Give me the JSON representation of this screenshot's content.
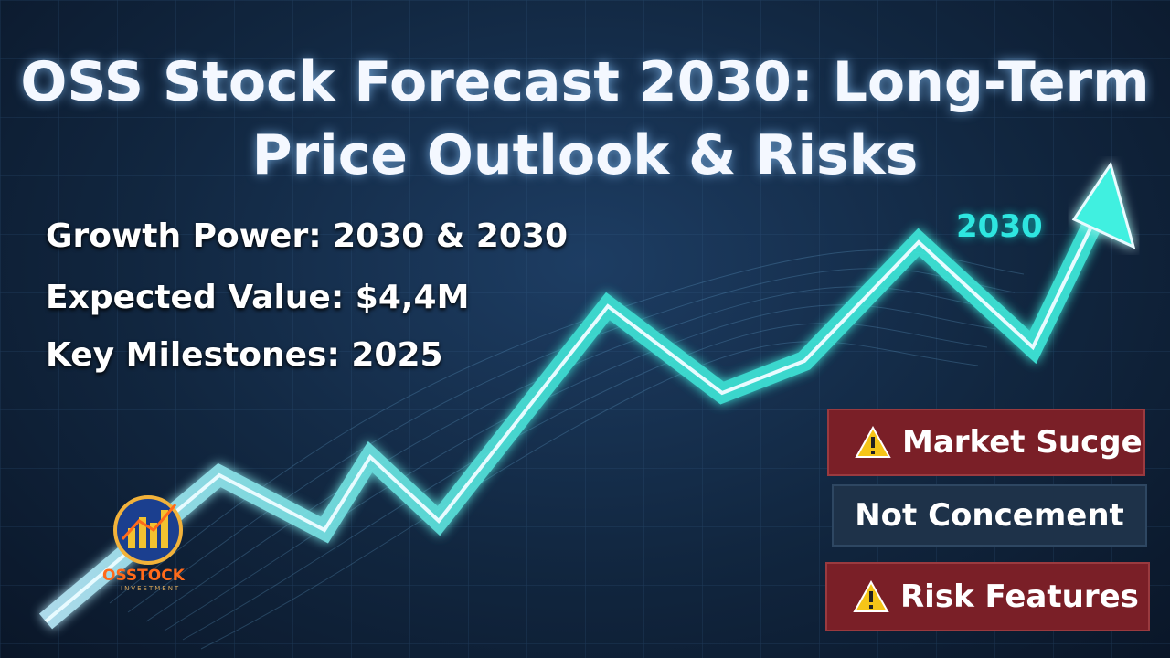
{
  "header": {
    "title_lines": [
      "OSS Stock Forecast 2030: Long-Term",
      "Price Outlook & Risks"
    ]
  },
  "highlights": [
    "Growth Power: 2030 & 2030",
    "Expected Value: $4,4M",
    "Key Milestones: 2025"
  ],
  "arrow_label": "2030",
  "badges": [
    "Market Sucge",
    "Not Concement",
    "Risk Features"
  ],
  "logo": {
    "name": "OSSTOCK",
    "tagline": "INVESTMENT"
  }
}
